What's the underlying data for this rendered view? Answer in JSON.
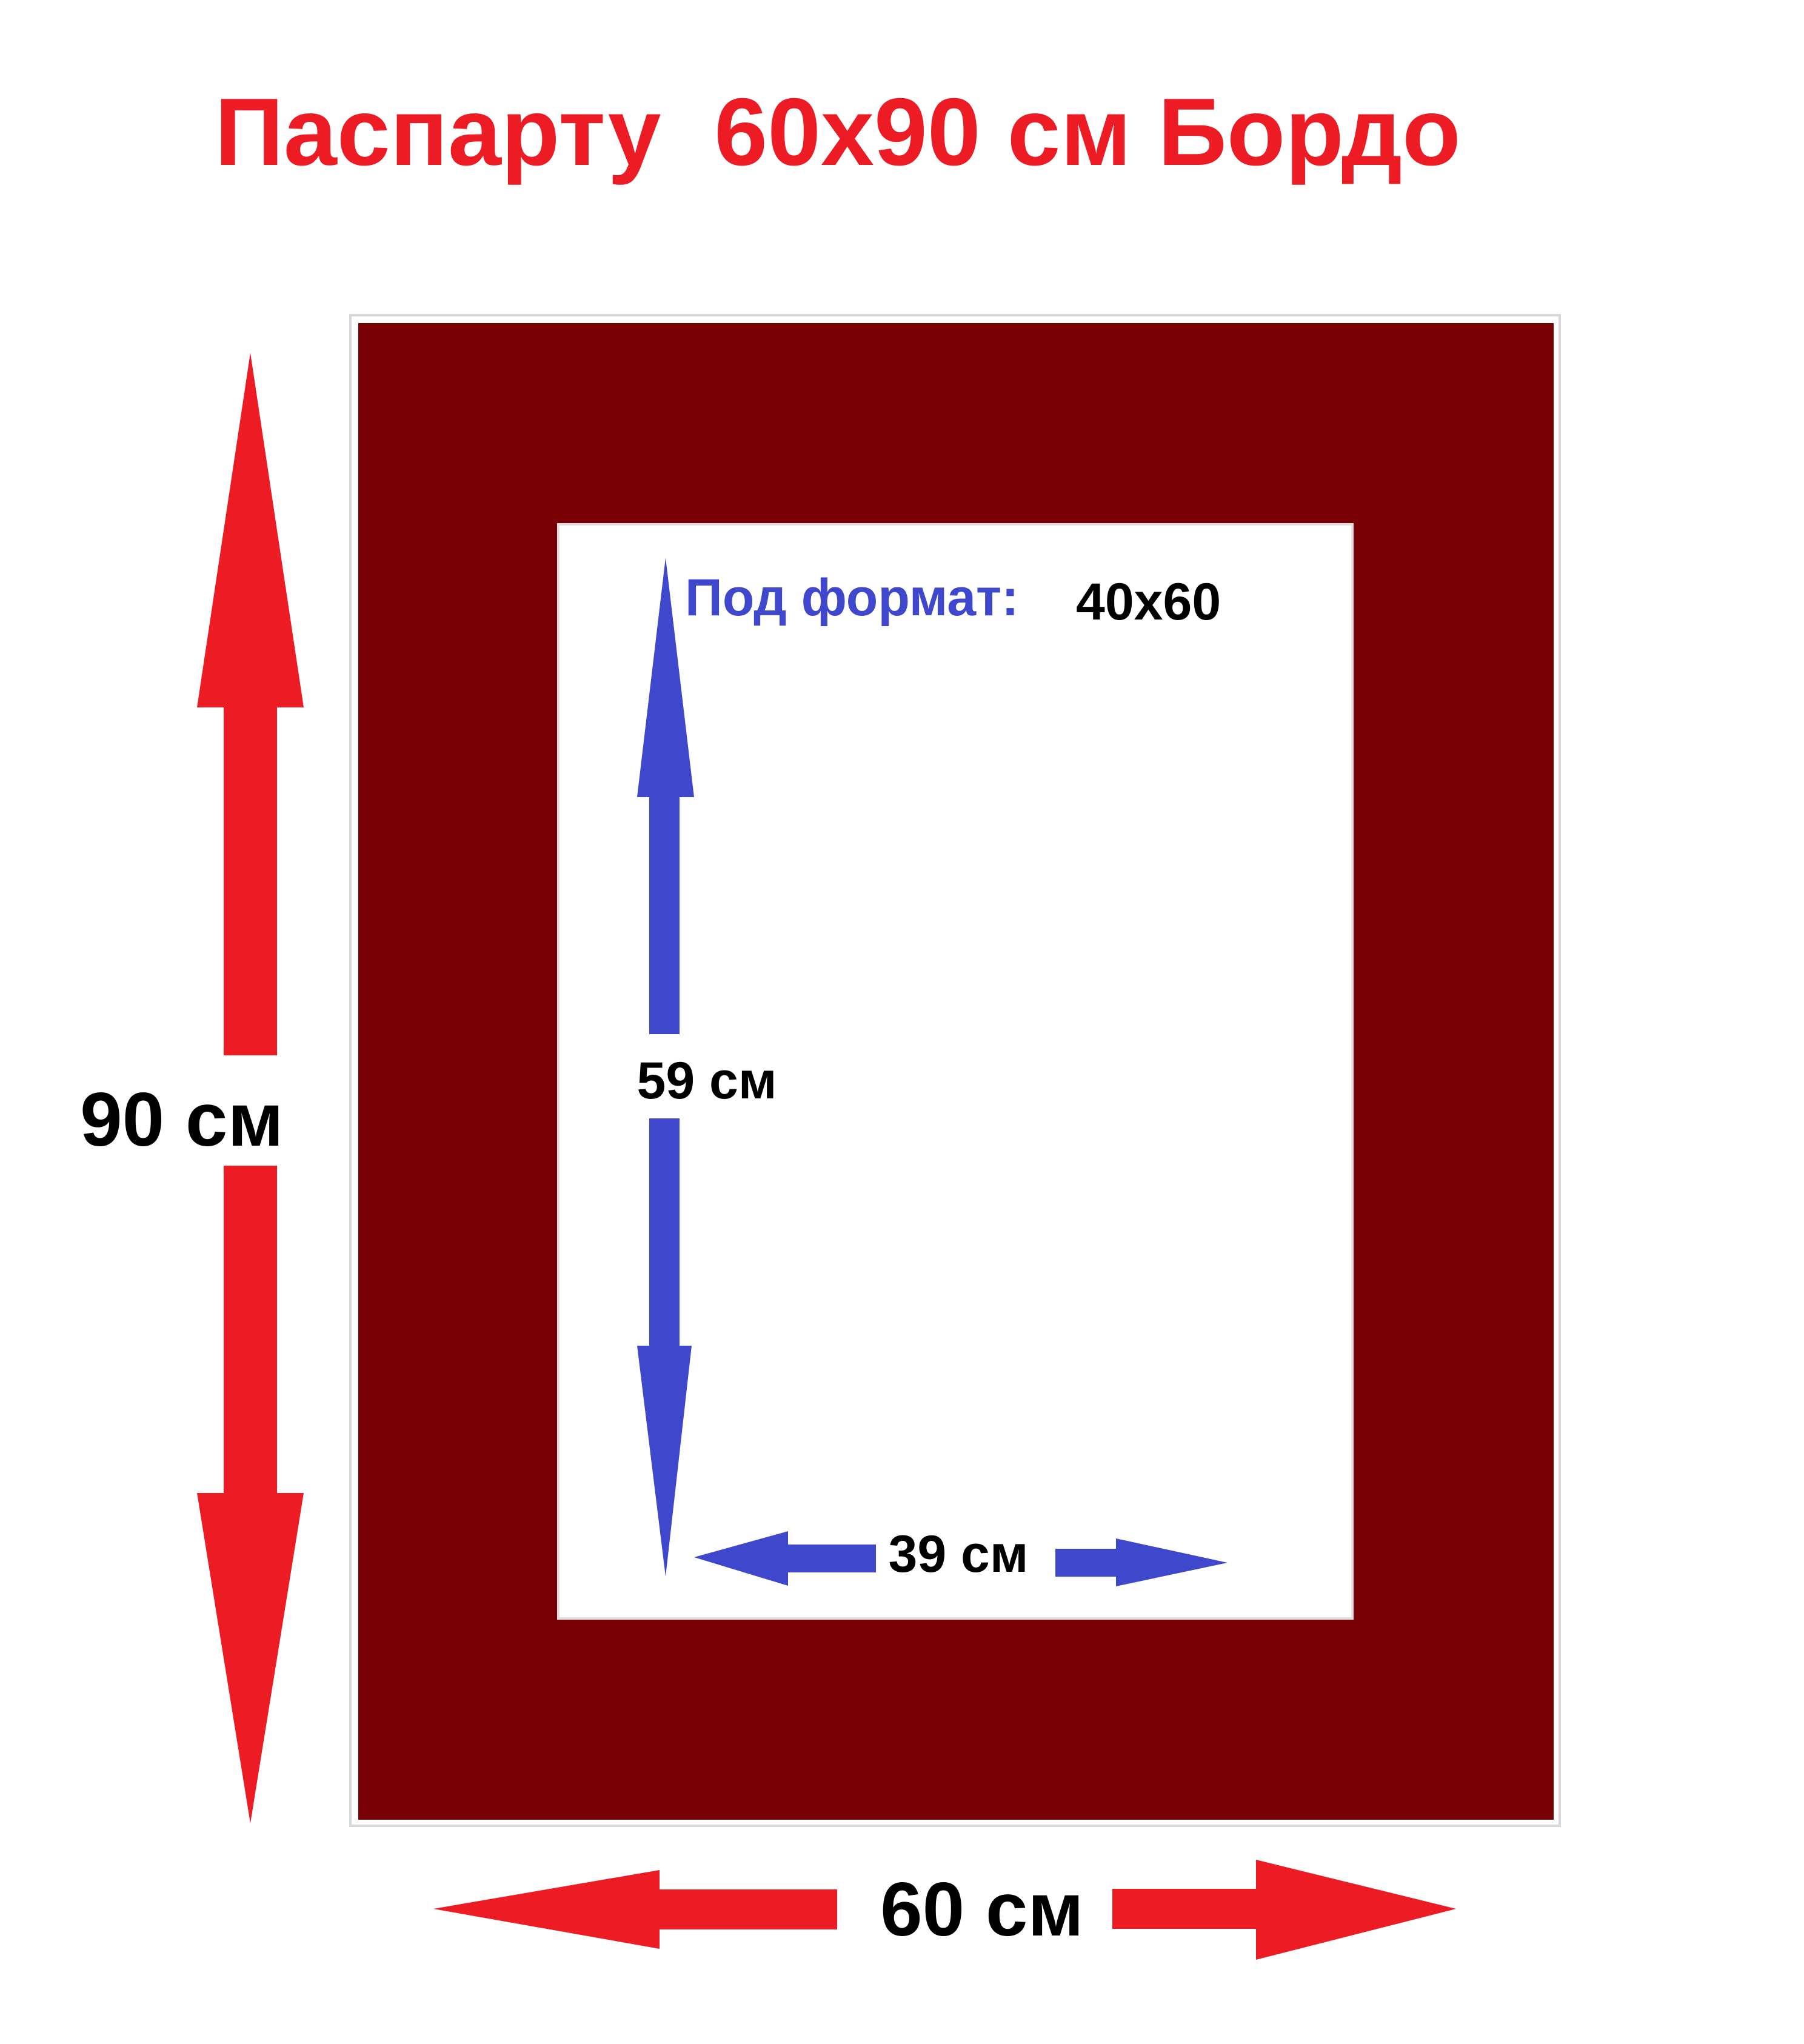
{
  "title": "Паспарту  60x90 см Бордо",
  "outer": {
    "height_label": "90 см",
    "width_label": "60 см"
  },
  "inner": {
    "height_label": "59 см",
    "width_label": "39 см"
  },
  "format": {
    "label": "Под формат:",
    "value": "40x60"
  },
  "colors": {
    "title_red": "#ED1C24",
    "arrow_red": "#ED1C24",
    "arrow_blue": "#3F48CC",
    "mat": "#780005",
    "inner": "#FFFFFF"
  }
}
